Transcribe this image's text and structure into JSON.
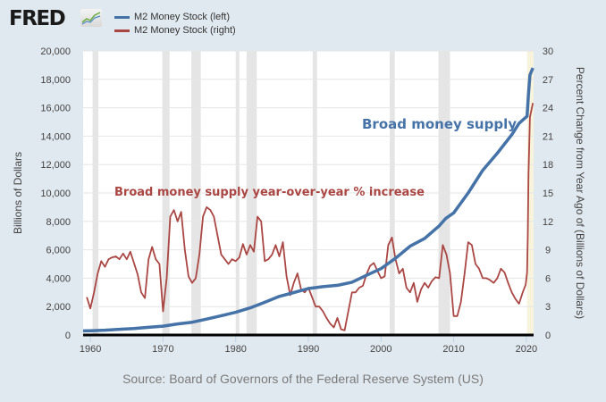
{
  "header": {
    "logo_text": "FRED",
    "logo_icon": "line-graph-icon"
  },
  "source": "Source: Board of Governors of the Federal Reserve System (US)",
  "colors": {
    "level_series": "#4572a7",
    "growth_series": "#aa4643",
    "recession_bar": "#e5e5e5",
    "recession_partial": "#f7f3dc",
    "gridline": "#e6e6e6",
    "background": "#e1e9f0"
  },
  "chart_data": {
    "type": "line",
    "title": "",
    "xlabel": "",
    "ylabel_left": "Billions of Dollars",
    "ylabel_right": "Percent Change from Year Ago of (Billions of Dollars)",
    "xlim": [
      1959,
      2021
    ],
    "ylim_left": [
      0,
      20000
    ],
    "ylim_right": [
      0,
      30
    ],
    "x_ticks": [
      "1960",
      "1970",
      "1980",
      "1990",
      "2000",
      "2010",
      "2020"
    ],
    "y_ticks_left": [
      "0",
      "2,000",
      "4,000",
      "6,000",
      "8,000",
      "10,000",
      "12,000",
      "14,000",
      "16,000",
      "18,000",
      "20,000"
    ],
    "y_ticks_right": [
      "0",
      "3",
      "6",
      "9",
      "12",
      "15",
      "18",
      "21",
      "24",
      "27",
      "30"
    ],
    "grid": true,
    "legend_position": "top-left",
    "recessions": [
      [
        1960.3,
        1961.1
      ],
      [
        1969.9,
        1970.9
      ],
      [
        1973.9,
        1975.2
      ],
      [
        1980.0,
        1980.5
      ],
      [
        1981.5,
        1982.9
      ],
      [
        1990.6,
        1991.2
      ],
      [
        2001.2,
        2001.9
      ],
      [
        2007.9,
        2009.5
      ]
    ],
    "recession_partial": [
      2020.1,
      2021
    ],
    "annotations": [
      {
        "text": "Broad money supply",
        "series": "M2 Money Stock (left)"
      },
      {
        "text": "Broad money supply year-over-year % increase",
        "series": "M2 Money Stock (right)"
      }
    ],
    "series": [
      {
        "name": "M2 Money Stock (left)",
        "axis": "left",
        "x": [
          1959,
          1960,
          1962,
          1964,
          1966,
          1968,
          1970,
          1972,
          1974,
          1976,
          1978,
          1980,
          1982,
          1984,
          1986,
          1988,
          1990,
          1992,
          1994,
          1996,
          1998,
          2000,
          2002,
          2004,
          2006,
          2008,
          2008.9,
          2010,
          2012,
          2014,
          2016,
          2018,
          2019,
          2020.1,
          2020.3,
          2020.5,
          2020.9
        ],
        "values": [
          290,
          305,
          340,
          400,
          460,
          540,
          620,
          780,
          900,
          1120,
          1360,
          1600,
          1910,
          2300,
          2720,
          2990,
          3270,
          3400,
          3500,
          3720,
          4200,
          4670,
          5400,
          6250,
          6800,
          7680,
          8200,
          8600,
          10000,
          11600,
          12800,
          14100,
          14900,
          15400,
          17000,
          18300,
          18800
        ]
      },
      {
        "name": "M2 Money Stock (right)",
        "axis": "right",
        "x": [
          1959.5,
          1960.0,
          1960.5,
          1961.0,
          1961.5,
          1962.0,
          1962.5,
          1963.0,
          1963.5,
          1964.0,
          1964.5,
          1965.0,
          1965.5,
          1966.0,
          1966.5,
          1967.0,
          1967.5,
          1968.0,
          1968.5,
          1969.0,
          1969.5,
          1970.0,
          1970.5,
          1971.0,
          1971.5,
          1972.0,
          1972.5,
          1973.0,
          1973.5,
          1974.0,
          1974.5,
          1975.0,
          1975.5,
          1976.0,
          1976.5,
          1977.0,
          1977.5,
          1978.0,
          1978.5,
          1979.0,
          1979.5,
          1980.0,
          1980.5,
          1981.0,
          1981.5,
          1982.0,
          1982.5,
          1983.0,
          1983.5,
          1984.0,
          1984.5,
          1985.0,
          1985.5,
          1986.0,
          1986.5,
          1987.0,
          1987.5,
          1988.0,
          1988.5,
          1989.0,
          1989.5,
          1990.0,
          1990.5,
          1991.0,
          1991.5,
          1992.0,
          1992.5,
          1993.0,
          1993.5,
          1994.0,
          1994.5,
          1995.0,
          1995.5,
          1996.0,
          1996.5,
          1997.0,
          1997.5,
          1998.0,
          1998.5,
          1999.0,
          1999.5,
          2000.0,
          2000.5,
          2001.0,
          2001.5,
          2002.0,
          2002.5,
          2003.0,
          2003.5,
          2004.0,
          2004.5,
          2005.0,
          2005.5,
          2006.0,
          2006.5,
          2007.0,
          2007.5,
          2008.0,
          2008.5,
          2009.0,
          2009.5,
          2010.0,
          2010.5,
          2011.0,
          2011.5,
          2012.0,
          2012.5,
          2013.0,
          2013.5,
          2014.0,
          2014.5,
          2015.0,
          2015.5,
          2016.0,
          2016.5,
          2017.0,
          2017.5,
          2018.0,
          2018.5,
          2019.0,
          2019.5,
          2019.9,
          2020.1,
          2020.2,
          2020.3,
          2020.5,
          2020.9
        ],
        "values": [
          4.0,
          2.8,
          4.5,
          6.5,
          7.8,
          7.2,
          8.0,
          8.2,
          8.3,
          8.0,
          8.6,
          8.0,
          8.8,
          7.6,
          6.4,
          4.5,
          3.9,
          8.0,
          9.3,
          8.0,
          7.5,
          2.5,
          6.0,
          12.5,
          13.2,
          12.0,
          13.0,
          9.0,
          6.2,
          5.5,
          6.0,
          8.5,
          12.5,
          13.5,
          13.2,
          12.5,
          10.5,
          8.5,
          8.0,
          7.5,
          8.0,
          7.8,
          8.2,
          9.6,
          8.5,
          9.5,
          8.8,
          12.5,
          12.0,
          7.8,
          8.0,
          8.5,
          9.5,
          8.3,
          9.8,
          6.2,
          4.2,
          5.5,
          6.5,
          4.8,
          4.5,
          5.0,
          4.0,
          3.0,
          3.0,
          2.5,
          1.8,
          1.2,
          0.8,
          1.8,
          0.6,
          0.5,
          2.5,
          4.5,
          4.5,
          5.0,
          5.2,
          6.4,
          7.3,
          7.6,
          6.8,
          6.0,
          6.2,
          9.5,
          10.3,
          8.0,
          6.5,
          7.0,
          5.0,
          4.5,
          5.5,
          3.5,
          4.8,
          5.5,
          5.0,
          5.7,
          6.1,
          6.0,
          9.5,
          8.5,
          6.5,
          2.0,
          2.0,
          3.5,
          6.5,
          9.8,
          9.5,
          7.5,
          7.0,
          6.0,
          6.0,
          5.8,
          5.5,
          6.0,
          7.0,
          6.6,
          5.5,
          4.5,
          3.8,
          3.3,
          4.5,
          5.3,
          6.6,
          10.5,
          17.0,
          23.0,
          24.5
        ]
      }
    ]
  }
}
